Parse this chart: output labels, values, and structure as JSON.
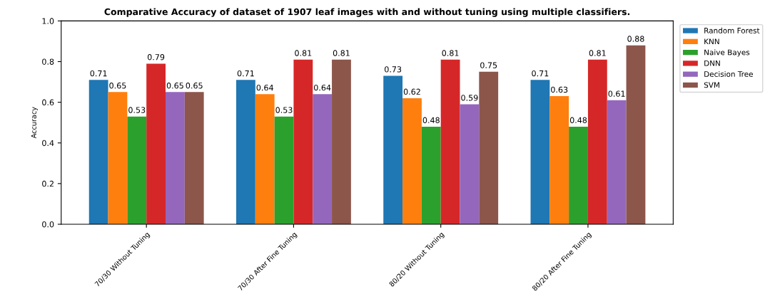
{
  "chart_data": {
    "type": "bar",
    "title": "Comparative Accuracy of dataset of 1907 leaf images with and without tuning using multiple classifiers.",
    "ylabel": "Accuracy",
    "categories": [
      "70/30 Without Tuning",
      "70/30 After Fine Tuning",
      "80/20 Without Tuning",
      "80/20 After Fine Tuning"
    ],
    "series": [
      {
        "name": "Random Forest",
        "color": "#1f77b4",
        "values": [
          0.71,
          0.71,
          0.73,
          0.71
        ]
      },
      {
        "name": "KNN",
        "color": "#ff7f0e",
        "values": [
          0.65,
          0.64,
          0.62,
          0.63
        ]
      },
      {
        "name": "Naive Bayes",
        "color": "#2ca02c",
        "values": [
          0.53,
          0.53,
          0.48,
          0.48
        ]
      },
      {
        "name": "DNN",
        "color": "#d62728",
        "values": [
          0.79,
          0.81,
          0.81,
          0.81
        ]
      },
      {
        "name": "Decision Tree",
        "color": "#9467bd",
        "values": [
          0.65,
          0.64,
          0.59,
          0.61
        ]
      },
      {
        "name": "SVM",
        "color": "#8c564b",
        "values": [
          0.65,
          0.81,
          0.75,
          0.88
        ]
      }
    ],
    "ylim": [
      0,
      1
    ],
    "yticks": [
      {
        "value": 0,
        "label": "0.0"
      },
      {
        "value": 0.2,
        "label": "0.2"
      },
      {
        "value": 0.4,
        "label": "0.4"
      },
      {
        "value": 0.6,
        "label": "0.6"
      },
      {
        "value": 0.8,
        "label": "0.8"
      },
      {
        "value": 1,
        "label": "1.0"
      }
    ],
    "data_labels": true,
    "grid": false,
    "legend": "top right"
  }
}
